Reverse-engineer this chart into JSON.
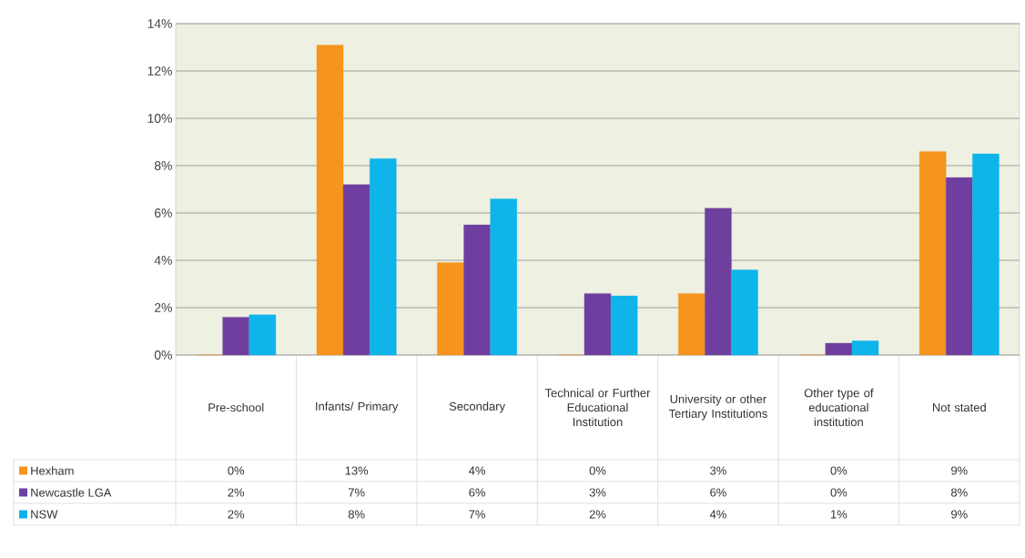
{
  "chart_data": {
    "type": "bar",
    "categories": [
      "Pre-school",
      "Infants/ Primary",
      "Secondary",
      "Technical or Further Educational Institution",
      "University or other Tertiary Institutions",
      "Other type of educational institution",
      "Not stated"
    ],
    "series": [
      {
        "name": "Hexham",
        "color": "#f7941d",
        "values": [
          0,
          13.1,
          3.9,
          0,
          2.6,
          0,
          8.6
        ],
        "value_labels": [
          "0%",
          "13%",
          "4%",
          "0%",
          "3%",
          "0%",
          "9%"
        ]
      },
      {
        "name": "Newcastle LGA",
        "color": "#6e3f9e",
        "values": [
          1.6,
          7.2,
          5.5,
          2.6,
          6.2,
          0.5,
          7.5
        ],
        "value_labels": [
          "2%",
          "7%",
          "6%",
          "3%",
          "6%",
          "0%",
          "8%"
        ]
      },
      {
        "name": "NSW",
        "color": "#0fb4ea",
        "values": [
          1.7,
          8.3,
          6.6,
          2.5,
          3.6,
          0.6,
          8.5
        ],
        "value_labels": [
          "2%",
          "8%",
          "7%",
          "2%",
          "4%",
          "1%",
          "9%"
        ]
      }
    ],
    "ylim": [
      0,
      14
    ],
    "yticks": [
      {
        "value": 0,
        "label": "0%"
      },
      {
        "value": 2,
        "label": "2%"
      },
      {
        "value": 4,
        "label": "4%"
      },
      {
        "value": 6,
        "label": "6%"
      },
      {
        "value": 8,
        "label": "8%"
      },
      {
        "value": 10,
        "label": "10%"
      },
      {
        "value": 12,
        "label": "12%"
      },
      {
        "value": 14,
        "label": "14%"
      }
    ],
    "grid": "y",
    "legend": "bottom"
  }
}
